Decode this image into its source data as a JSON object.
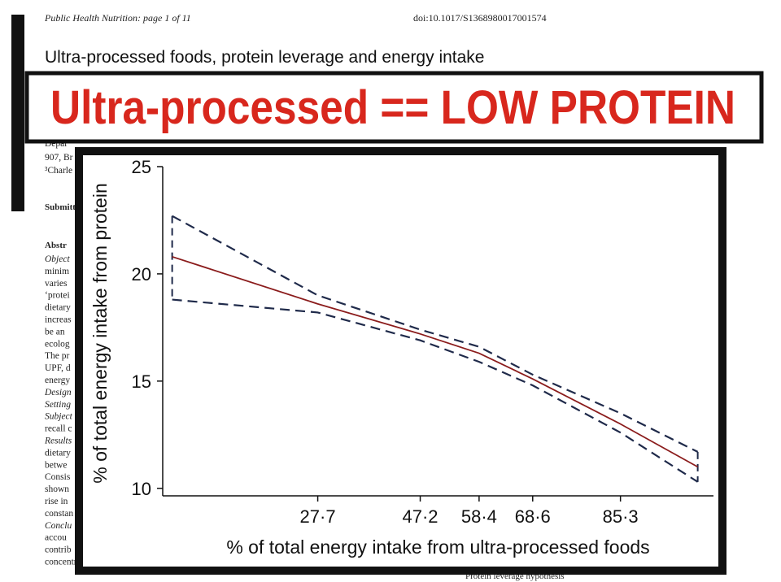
{
  "header": {
    "journal": "Public Health Nutrition: page 1 of 11",
    "doi": "doi:10.1017/S1368980017001574",
    "title": "Ultra-processed foods, protein leverage and energy intake",
    "banner": "Ultra-processed == LOW PROTEIN"
  },
  "paper_fragments": [
    "Depar",
    "907, Br",
    "³Charle",
    "Submitted",
    "Abstr",
    "Object",
    "minim",
    "varies",
    "‘protei",
    "dietary",
    "increas",
    "be an",
    "ecolog",
    "The pr",
    "UPF, d",
    "energy",
    "Design",
    "Setting",
    "Subject",
    "recall c",
    "Results",
    "dietary",
    "betwe",
    "Consis",
    "shown",
    "rise in",
    "constan",
    "Conclu",
    "accou",
    "contrib",
    "concentration and prevent excessive energy intake."
  ],
  "footer_right": "Protein leverage hypothesis",
  "chart_data": {
    "type": "line",
    "x_label": "% of total energy intake from ultra-processed foods",
    "y_label": "% of total energy intake from protein",
    "x": [
      0,
      27.7,
      47.2,
      58.4,
      68.6,
      85.3,
      100
    ],
    "series": [
      {
        "color": "#8b1c1c",
        "dashed": false,
        "values": [
          20.8,
          18.6,
          17.2,
          16.3,
          15.1,
          13.0,
          11.0
        ]
      },
      {
        "color": "#1f2a4a",
        "dashed": true,
        "values": [
          22.7,
          19.0,
          17.4,
          16.6,
          15.3,
          13.5,
          11.7
        ]
      },
      {
        "color": "#1f2a4a",
        "dashed": true,
        "values": [
          18.8,
          18.2,
          16.9,
          15.9,
          14.8,
          12.6,
          10.3
        ]
      }
    ],
    "xlim": [
      -1.8,
      103
    ],
    "ylim": [
      9.65,
      25
    ],
    "xticks": [
      {
        "value": 27.7,
        "label": "27·7"
      },
      {
        "value": 47.2,
        "label": "47·2"
      },
      {
        "value": 58.4,
        "label": "58·4"
      },
      {
        "value": 68.6,
        "label": "68·6"
      },
      {
        "value": 85.3,
        "label": "85·3"
      }
    ],
    "yticks": [
      10,
      15,
      20,
      25
    ]
  }
}
